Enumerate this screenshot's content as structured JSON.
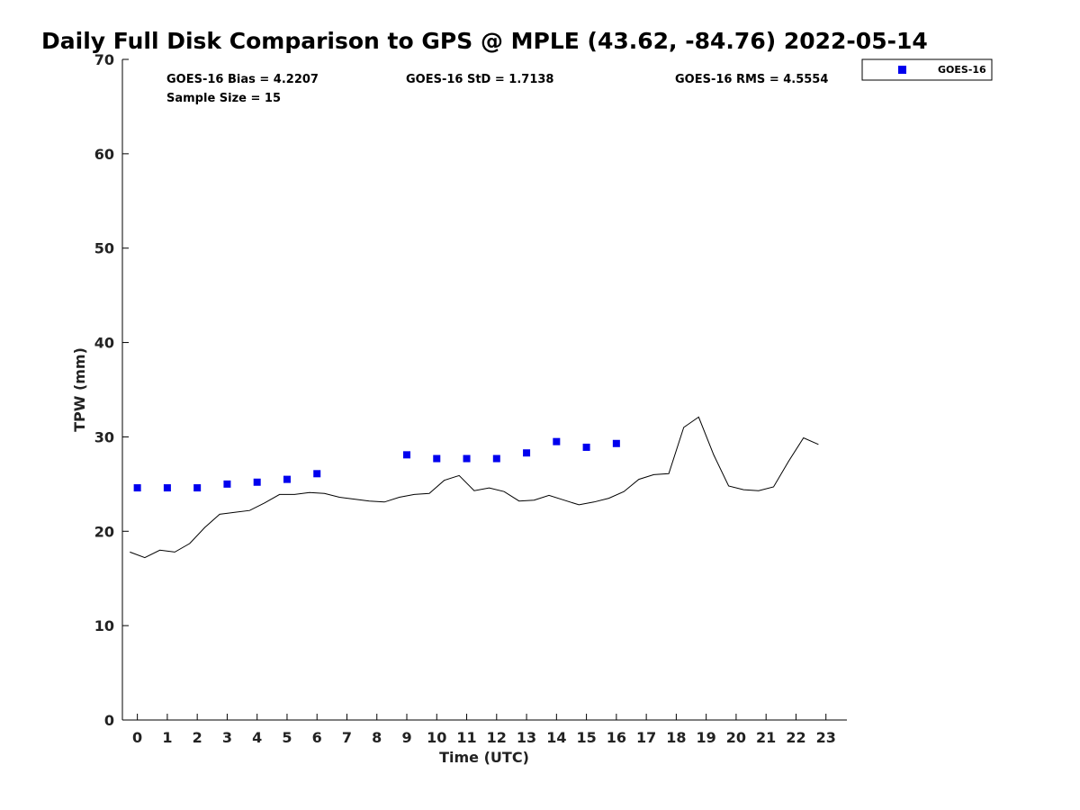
{
  "chart_data": {
    "type": "scatter",
    "title": "Daily Full Disk Comparison to GPS @ MPLE (43.62, -84.76) 2022-05-14",
    "xlabel": "Time (UTC)",
    "ylabel": "TPW (mm)",
    "xlim": [
      -0.5,
      23.7
    ],
    "ylim": [
      0,
      70
    ],
    "x_ticks": [
      0,
      1,
      2,
      3,
      4,
      5,
      6,
      7,
      8,
      9,
      10,
      11,
      12,
      13,
      14,
      15,
      16,
      17,
      18,
      19,
      20,
      21,
      22,
      23
    ],
    "y_ticks": [
      0,
      10,
      20,
      30,
      40,
      50,
      60,
      70
    ],
    "stats": {
      "bias": "GOES-16 Bias = 4.2207",
      "std": "GOES-16 StD = 1.7138",
      "rms": "GOES-16 RMS = 4.5554",
      "sample": "Sample Size = 15"
    },
    "legend": {
      "label": "GOES-16",
      "position": "top-right-outside"
    },
    "series": [
      {
        "name": "GOES-16",
        "kind": "scatter",
        "color": "#0000ee",
        "x": [
          0,
          1,
          2,
          3,
          4,
          5,
          6,
          9,
          10,
          11,
          12,
          13,
          14,
          15,
          16
        ],
        "y": [
          24.6,
          24.6,
          24.6,
          25.0,
          25.2,
          25.5,
          26.1,
          28.1,
          27.7,
          27.7,
          27.7,
          28.3,
          29.5,
          28.9,
          29.3
        ]
      },
      {
        "name": "GPS",
        "kind": "line",
        "color": "#000000",
        "x": [
          -0.25,
          0.25,
          0.75,
          1.25,
          1.75,
          2.25,
          2.75,
          3.25,
          3.75,
          4.25,
          4.75,
          5.25,
          5.75,
          6.25,
          6.75,
          7.25,
          7.75,
          8.25,
          8.75,
          9.25,
          9.75,
          10.25,
          10.75,
          11.25,
          11.75,
          12.25,
          12.75,
          13.25,
          13.75,
          14.25,
          14.75,
          15.25,
          15.75,
          16.25,
          16.75,
          17.25,
          17.75,
          18.25,
          18.75,
          19.25,
          19.75,
          20.25,
          20.75,
          21.25,
          21.75,
          22.25,
          22.75
        ],
        "y": [
          17.8,
          17.2,
          18.0,
          17.8,
          18.7,
          20.4,
          21.8,
          22.0,
          22.2,
          23.0,
          23.9,
          23.9,
          24.1,
          24.0,
          23.6,
          23.4,
          23.2,
          23.1,
          23.6,
          23.9,
          24.0,
          25.4,
          25.9,
          24.3,
          24.6,
          24.2,
          23.2,
          23.3,
          23.8,
          23.3,
          22.8,
          23.1,
          23.5,
          24.2,
          25.5,
          26.0,
          26.1,
          31.0,
          32.1,
          28.1,
          24.8,
          24.4,
          24.3,
          24.7,
          27.4,
          29.9,
          29.2
        ]
      }
    ]
  }
}
